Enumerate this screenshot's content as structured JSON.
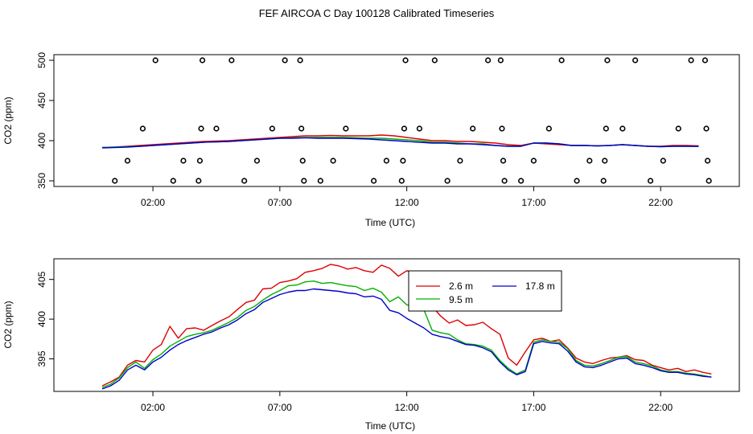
{
  "title": "FEF AIRCOA C  Day 100128  Calibrated Timeseries",
  "chart_data": [
    {
      "type": "scatter+line",
      "title": "",
      "xlabel": "Time (UTC)",
      "ylabel": "CO2 (ppm)",
      "xlim": [
        -1.9,
        25.1
      ],
      "ylim": [
        343,
        507
      ],
      "x_ticks": [
        2,
        7,
        12,
        17,
        22
      ],
      "x_tick_labels": [
        "02:00",
        "07:00",
        "12:00",
        "17:00",
        "22:00"
      ],
      "y_ticks": [
        350,
        400,
        450,
        500
      ],
      "y_tick_labels": [
        "350",
        "400",
        "450",
        "500"
      ],
      "calibration_points": [
        [
          0.5,
          350
        ],
        [
          1.0,
          375
        ],
        [
          1.6,
          415
        ],
        [
          2.1,
          500
        ],
        [
          2.8,
          350
        ],
        [
          3.2,
          375
        ],
        [
          3.8,
          350
        ],
        [
          3.85,
          375
        ],
        [
          3.9,
          415
        ],
        [
          3.95,
          500
        ],
        [
          4.5,
          415
        ],
        [
          5.1,
          500
        ],
        [
          5.6,
          350
        ],
        [
          6.1,
          375
        ],
        [
          6.7,
          415
        ],
        [
          7.2,
          500
        ],
        [
          7.8,
          500
        ],
        [
          7.85,
          415
        ],
        [
          7.9,
          375
        ],
        [
          7.95,
          350
        ],
        [
          8.6,
          350
        ],
        [
          9.1,
          375
        ],
        [
          9.6,
          415
        ],
        [
          10.7,
          350
        ],
        [
          11.2,
          375
        ],
        [
          11.8,
          350
        ],
        [
          11.85,
          375
        ],
        [
          11.9,
          415
        ],
        [
          11.95,
          500
        ],
        [
          12.5,
          415
        ],
        [
          13.1,
          500
        ],
        [
          13.6,
          350
        ],
        [
          14.1,
          375
        ],
        [
          14.6,
          415
        ],
        [
          15.2,
          500
        ],
        [
          15.7,
          500
        ],
        [
          15.75,
          415
        ],
        [
          15.8,
          375
        ],
        [
          15.85,
          350
        ],
        [
          16.5,
          350
        ],
        [
          17.0,
          375
        ],
        [
          17.6,
          415
        ],
        [
          18.1,
          500
        ],
        [
          18.7,
          350
        ],
        [
          19.2,
          375
        ],
        [
          19.75,
          350
        ],
        [
          19.8,
          375
        ],
        [
          19.85,
          415
        ],
        [
          19.9,
          500
        ],
        [
          20.5,
          415
        ],
        [
          21.0,
          500
        ],
        [
          21.6,
          350
        ],
        [
          22.1,
          375
        ],
        [
          22.7,
          415
        ],
        [
          23.2,
          500
        ],
        [
          23.75,
          500
        ],
        [
          23.8,
          415
        ],
        [
          23.85,
          375
        ],
        [
          23.9,
          350
        ]
      ],
      "series": [
        {
          "name": "2.6 m",
          "color": "#dd0000",
          "x": [
            0,
            0.5,
            1,
            1.5,
            2,
            2.5,
            3,
            3.5,
            4,
            4.5,
            5,
            5.5,
            6,
            6.5,
            7,
            7.5,
            8,
            8.5,
            9,
            9.5,
            10,
            10.5,
            11,
            11.5,
            12,
            12.5,
            13,
            13.5,
            14,
            14.5,
            15,
            15.5,
            16,
            16.5,
            17,
            17.5,
            18,
            18.5,
            19,
            19.5,
            20,
            20.5,
            21,
            21.5,
            22,
            22.5,
            23,
            23.5
          ],
          "y": [
            391.5,
            392,
            393,
            394,
            395,
            396,
            397,
            398,
            399,
            399.5,
            400,
            401,
            402,
            403,
            404,
            405,
            406,
            406,
            406.5,
            406,
            406,
            406,
            407,
            406,
            404,
            402,
            400,
            400,
            399,
            399,
            398,
            397,
            395,
            394,
            397,
            396,
            395,
            394,
            394,
            393.5,
            394,
            395,
            394,
            393,
            393,
            394,
            394,
            393.5
          ]
        },
        {
          "name": "9.5 m",
          "color": "#00b000",
          "x": [
            0,
            0.5,
            1,
            1.5,
            2,
            2.5,
            3,
            3.5,
            4,
            4.5,
            5,
            5.5,
            6,
            6.5,
            7,
            7.5,
            8,
            8.5,
            9,
            9.5,
            10,
            10.5,
            11,
            11.5,
            12,
            12.5,
            13,
            13.5,
            14,
            14.5,
            15,
            15.5,
            16,
            16.5,
            17,
            17.5,
            18,
            18.5,
            19,
            19.5,
            20,
            20.5,
            21,
            21.5,
            22,
            22.5,
            23,
            23.5
          ],
          "y": [
            391.5,
            392,
            392.5,
            393,
            394,
            395,
            396,
            397,
            398,
            398.5,
            399,
            400,
            401,
            402,
            403,
            403.5,
            404,
            404,
            404,
            404,
            403.5,
            403,
            403,
            402,
            401,
            400,
            398,
            398,
            397,
            396,
            396,
            394,
            393,
            393,
            397,
            397,
            396,
            394,
            394,
            393.5,
            394,
            395,
            394,
            393,
            392.5,
            393,
            393,
            392.8
          ]
        },
        {
          "name": "17.8 m",
          "color": "#0000cc",
          "x": [
            0,
            0.5,
            1,
            1.5,
            2,
            2.5,
            3,
            3.5,
            4,
            4.5,
            5,
            5.5,
            6,
            6.5,
            7,
            7.5,
            8,
            8.5,
            9,
            9.5,
            10,
            10.5,
            11,
            11.5,
            12,
            12.5,
            13,
            13.5,
            14,
            14.5,
            15,
            15.5,
            16,
            16.5,
            17,
            17.5,
            18,
            18.5,
            19,
            19.5,
            20,
            20.5,
            21,
            21.5,
            22,
            22.5,
            23,
            23.5
          ],
          "y": [
            391,
            391.5,
            392,
            393,
            394,
            395,
            396,
            397,
            398,
            398.5,
            399,
            400,
            401,
            402,
            403,
            403,
            403.5,
            403,
            403,
            403,
            402.5,
            402,
            401,
            400,
            399,
            398,
            397,
            397,
            396,
            396,
            395,
            394,
            393,
            393,
            397,
            397,
            396,
            394,
            394,
            393.5,
            394,
            395,
            394,
            393,
            392.5,
            393,
            393,
            392.8
          ]
        }
      ]
    },
    {
      "type": "line",
      "title": "",
      "xlabel": "Time (UTC)",
      "ylabel": "CO2 (ppm)",
      "xlim": [
        -1.9,
        25.1
      ],
      "ylim": [
        390.9,
        407.6
      ],
      "x_ticks": [
        2,
        7,
        12,
        17,
        22
      ],
      "x_tick_labels": [
        "02:00",
        "07:00",
        "12:00",
        "17:00",
        "22:00"
      ],
      "y_ticks": [
        395,
        400,
        405
      ],
      "y_tick_labels": [
        "395",
        "400",
        "405"
      ],
      "legend": {
        "position": "top-right",
        "entries": [
          "2.6 m",
          "9.5 m",
          "17.8 m"
        ]
      },
      "series": [
        {
          "name": "2.6 m",
          "color": "#dd0000",
          "x": [
            0,
            0.33,
            0.67,
            1,
            1.33,
            1.67,
            2,
            2.33,
            2.67,
            3,
            3.33,
            3.67,
            4,
            4.33,
            4.67,
            5,
            5.33,
            5.67,
            6,
            6.33,
            6.67,
            7,
            7.33,
            7.67,
            8,
            8.33,
            8.67,
            9,
            9.33,
            9.67,
            10,
            10.33,
            10.67,
            11,
            11.33,
            11.67,
            12,
            12.33,
            12.67,
            13,
            13.33,
            13.67,
            14,
            14.33,
            14.67,
            15,
            15.33,
            15.67,
            16,
            16.33,
            16.67,
            17,
            17.33,
            17.67,
            18,
            18.33,
            18.67,
            19,
            19.33,
            19.67,
            20,
            20.33,
            20.67,
            21,
            21.33,
            21.67,
            22,
            22.33,
            22.67,
            23,
            23.33,
            23.67,
            24
          ],
          "y": [
            391.6,
            392.1,
            392.7,
            394.2,
            394.8,
            394.6,
            396.1,
            396.8,
            399.1,
            397.6,
            398.8,
            398.9,
            398.6,
            399.2,
            399.8,
            400.3,
            401.2,
            402.1,
            402.4,
            403.8,
            403.9,
            404.6,
            404.8,
            405.1,
            405.9,
            406.1,
            406.4,
            406.9,
            406.7,
            406.3,
            406.5,
            406.1,
            405.9,
            406.8,
            406.4,
            405.4,
            406.1,
            405.7,
            405.2,
            401.6,
            400.4,
            399.5,
            399.9,
            399.2,
            399.3,
            399.6,
            398.8,
            398.1,
            395.1,
            394.2,
            395.9,
            397.4,
            397.6,
            397.2,
            397.4,
            396.4,
            395.1,
            394.6,
            394.4,
            394.8,
            395.1,
            395.2,
            395.4,
            394.9,
            394.8,
            394.2,
            393.9,
            393.6,
            393.8,
            393.4,
            393.6,
            393.3,
            393.1
          ]
        },
        {
          "name": "9.5 m",
          "color": "#00b000",
          "x": [
            0,
            0.33,
            0.67,
            1,
            1.33,
            1.67,
            2,
            2.33,
            2.67,
            3,
            3.33,
            3.67,
            4,
            4.33,
            4.67,
            5,
            5.33,
            5.67,
            6,
            6.33,
            6.67,
            7,
            7.33,
            7.67,
            8,
            8.33,
            8.67,
            9,
            9.33,
            9.67,
            10,
            10.33,
            10.67,
            11,
            11.33,
            11.67,
            12,
            12.33,
            12.67,
            13,
            13.33,
            13.67,
            14,
            14.33,
            14.67,
            15,
            15.33,
            15.67,
            16,
            16.33,
            16.67,
            17,
            17.33,
            17.67,
            18,
            18.33,
            18.67,
            19,
            19.33,
            19.67,
            20,
            20.33,
            20.67,
            21,
            21.33,
            21.67,
            22,
            22.33,
            22.67,
            23,
            23.33,
            23.67,
            24
          ],
          "y": [
            391.4,
            391.8,
            392.6,
            393.9,
            394.6,
            393.8,
            394.9,
            395.6,
            396.6,
            397.2,
            397.8,
            398.1,
            398.3,
            398.6,
            399.1,
            399.6,
            400.2,
            401.1,
            401.6,
            402.4,
            403.1,
            403.6,
            404.2,
            404.3,
            404.7,
            404.8,
            404.5,
            404.6,
            404.4,
            404.2,
            404.1,
            403.6,
            403.9,
            403.4,
            402.2,
            402.8,
            401.8,
            401.6,
            401.2,
            398.6,
            398.3,
            398.1,
            397.4,
            396.9,
            396.8,
            396.6,
            396.1,
            394.8,
            393.8,
            393.1,
            393.6,
            397.1,
            397.4,
            397.2,
            397.1,
            396.3,
            394.8,
            394.2,
            394.1,
            394.4,
            394.8,
            395.2,
            395.3,
            394.6,
            394.4,
            394.1,
            393.6,
            393.4,
            393.4,
            393.2,
            393.1,
            392.9,
            392.7
          ]
        },
        {
          "name": "17.8 m",
          "color": "#0000cc",
          "x": [
            0,
            0.33,
            0.67,
            1,
            1.33,
            1.67,
            2,
            2.33,
            2.67,
            3,
            3.33,
            3.67,
            4,
            4.33,
            4.67,
            5,
            5.33,
            5.67,
            6,
            6.33,
            6.67,
            7,
            7.33,
            7.67,
            8,
            8.33,
            8.67,
            9,
            9.33,
            9.67,
            10,
            10.33,
            10.67,
            11,
            11.33,
            11.67,
            12,
            12.33,
            12.67,
            13,
            13.33,
            13.67,
            14,
            14.33,
            14.67,
            15,
            15.33,
            15.67,
            16,
            16.33,
            16.67,
            17,
            17.33,
            17.67,
            18,
            18.33,
            18.67,
            19,
            19.33,
            19.67,
            20,
            20.33,
            20.67,
            21,
            21.33,
            21.67,
            22,
            22.33,
            22.67,
            23,
            23.33,
            23.67,
            24
          ],
          "y": [
            391.2,
            391.6,
            392.3,
            393.6,
            394.2,
            393.6,
            394.6,
            395.2,
            396.1,
            396.8,
            397.3,
            397.7,
            398.1,
            398.4,
            398.9,
            399.3,
            399.9,
            400.7,
            401.2,
            402.1,
            402.6,
            403.1,
            403.4,
            403.6,
            403.6,
            403.8,
            403.7,
            403.6,
            403.5,
            403.3,
            403.2,
            402.8,
            402.9,
            402.5,
            401.1,
            400.8,
            400.1,
            399.5,
            398.9,
            398.1,
            397.8,
            397.6,
            397.2,
            396.8,
            396.7,
            396.4,
            395.9,
            394.6,
            393.6,
            393.0,
            393.4,
            396.9,
            397.2,
            397.0,
            396.9,
            396.0,
            394.6,
            394.0,
            393.9,
            394.2,
            394.6,
            395.0,
            395.1,
            394.4,
            394.2,
            393.9,
            393.5,
            393.3,
            393.3,
            393.1,
            393.0,
            392.8,
            392.7
          ]
        }
      ]
    }
  ]
}
